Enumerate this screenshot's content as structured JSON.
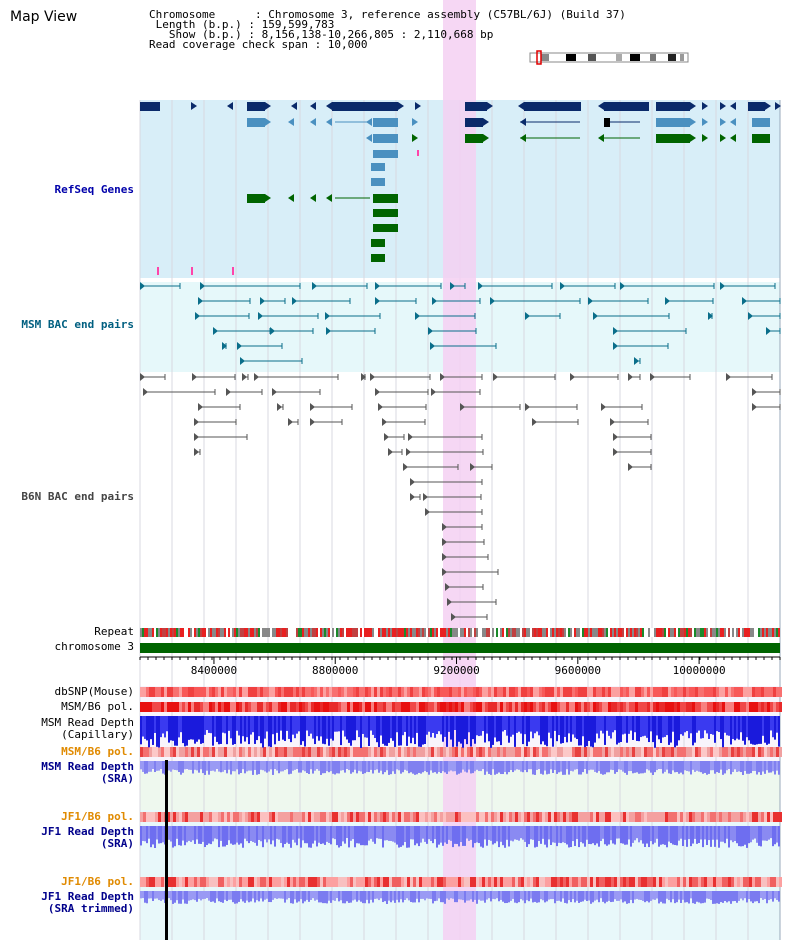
{
  "title": "Map View",
  "info": {
    "chromosome": "Chromosome      : Chromosome 3, reference assembly (C57BL/6J) (Build 37)",
    "length": " Length (b.p.) : 159,599,783",
    "show": "   Show (b.p.) : 8,156,138-10,266,805 : 2,110,668 bp",
    "span": "Read coverage check span : 10,000"
  },
  "tracks": {
    "refseq": "RefSeq Genes",
    "msm_bac": "MSM BAC end pairs",
    "b6n_bac": "B6N BAC end pairs",
    "repeat": "Repeat",
    "chromosome": "chromosome 3",
    "dbsnp": "dbSNP(Mouse)",
    "msm_pol": "MSM/B6 pol.",
    "msm_depth_cap": "MSM Read Depth\n(Capillary)",
    "msm_pol2": "MSM/B6 pol.",
    "msm_depth_sra": "MSM Read Depth\n(SRA)",
    "jf1_pol": "JF1/B6 pol.",
    "jf1_depth_sra": "JF1 Read Depth\n(SRA)",
    "jf1_pol2": "JF1/B6 pol.",
    "jf1_depth_trim": "JF1 Read Depth\n(SRA trimmed)"
  },
  "axis_ticks": [
    "8400000",
    "8800000",
    "9200000",
    "9600000",
    "10000000"
  ],
  "axis_values": [
    8400000,
    8800000,
    9200000,
    9600000,
    10000000
  ],
  "view_range": [
    8156138,
    10266805
  ],
  "highlight_range": [
    9145000,
    9250000
  ],
  "colors": {
    "refseq_dark": "#0a2a6a",
    "refseq_mid": "#4a90c0",
    "refseq_green": "#006400",
    "refseq_bg": "#d8eef8",
    "msm_bg": "#e6f8fa",
    "highlight": "#f5d0f2",
    "chromosome_bar": "#006400",
    "depth_blue": "#1a1adc",
    "depth_light": "#7b7bf0"
  }
}
